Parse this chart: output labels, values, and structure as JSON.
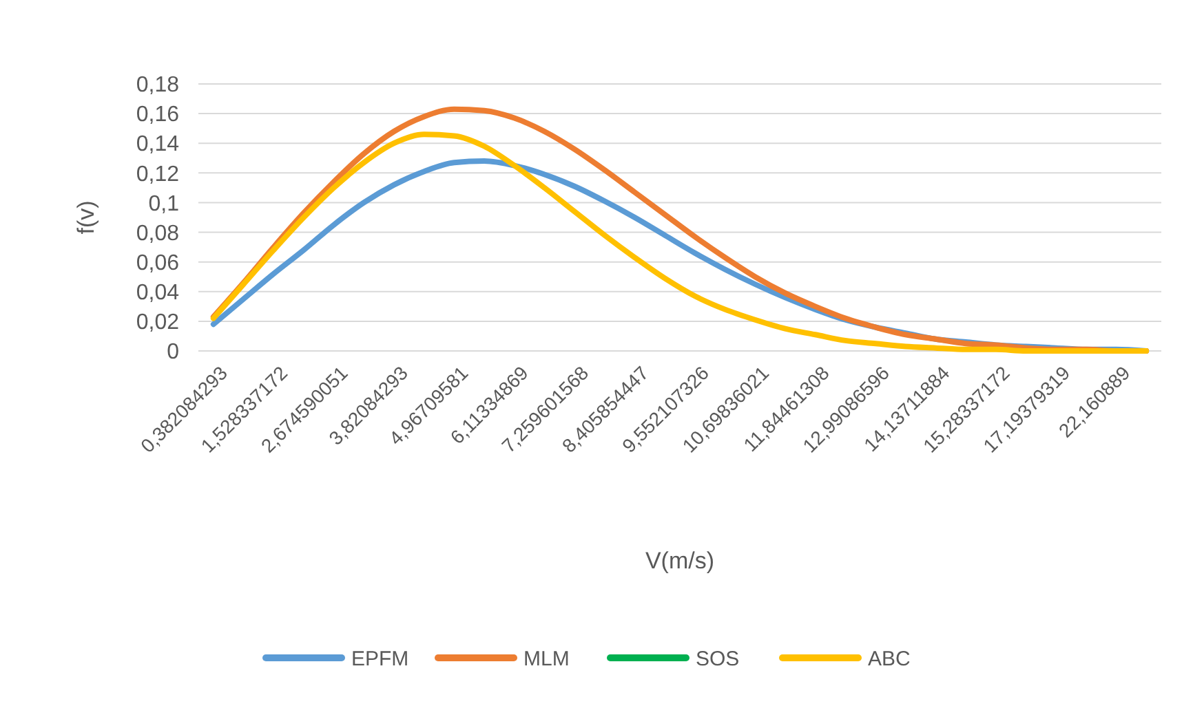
{
  "chart_data": {
    "type": "line",
    "xlabel": "V(m/s)",
    "ylabel": "f(v)",
    "categories": [
      "0,382084293",
      null,
      "1,528337172",
      null,
      "2,674590051",
      null,
      "3,82084293",
      null,
      "4,96709581",
      null,
      "6,11334869",
      null,
      "7,259601568",
      null,
      "8,405854447",
      null,
      "9,552107326",
      null,
      "10,69836021",
      null,
      "11,84461308",
      null,
      "12,99086596",
      null,
      "14,13711884",
      null,
      "15,28337172",
      null,
      "17,19379319",
      null,
      "22,160889",
      null
    ],
    "series": [
      {
        "name": "EPFM",
        "color": "#5b9bd5",
        "values": [
          0.018,
          0.035,
          0.052,
          0.068,
          0.085,
          0.1,
          0.112,
          0.121,
          0.127,
          0.128,
          0.125,
          0.119,
          0.111,
          0.101,
          0.09,
          0.078,
          0.066,
          0.055,
          0.045,
          0.036,
          0.028,
          0.021,
          0.016,
          0.012,
          0.008,
          0.006,
          0.004,
          0.003,
          0.002,
          0.001,
          0.001,
          0
        ]
      },
      {
        "name": "MLM",
        "color": "#ed7d31",
        "values": [
          0.023,
          0.046,
          0.07,
          0.093,
          0.114,
          0.133,
          0.148,
          0.158,
          0.163,
          0.162,
          0.157,
          0.148,
          0.136,
          0.122,
          0.107,
          0.092,
          0.077,
          0.063,
          0.05,
          0.039,
          0.03,
          0.022,
          0.016,
          0.011,
          0.008,
          0.005,
          0.004,
          0.002,
          0.001,
          0.001,
          0,
          0
        ]
      },
      {
        "name": "SOS",
        "color": "#00b050",
        "values": [
          null,
          null,
          null,
          null,
          null,
          null,
          null,
          null,
          null,
          null,
          null,
          null,
          null,
          null,
          null,
          null,
          null,
          null,
          null,
          null,
          null,
          null,
          null,
          null,
          null,
          null,
          null,
          null,
          null,
          null,
          null,
          null
        ]
      },
      {
        "name": "ABC",
        "color": "#ffc000",
        "values": [
          0.022,
          0.045,
          0.068,
          0.09,
          0.11,
          0.127,
          0.14,
          0.146,
          0.145,
          0.138,
          0.125,
          0.11,
          0.094,
          0.078,
          0.063,
          0.049,
          0.037,
          0.028,
          0.021,
          0.015,
          0.011,
          0.007,
          0.005,
          0.003,
          0.002,
          0.001,
          0.001,
          0,
          0,
          0,
          0,
          0
        ]
      }
    ],
    "ylim": [
      0,
      0.18
    ],
    "yticks": [
      0,
      {
        "value": 0.02,
        "label": "0,02"
      },
      {
        "value": 0.04,
        "label": "0,04"
      },
      {
        "value": 0.06,
        "label": "0,06"
      },
      {
        "value": 0.08,
        "label": "0,08"
      },
      {
        "value": 0.1,
        "label": "0,1"
      },
      {
        "value": 0.12,
        "label": "0,12"
      },
      {
        "value": 0.14,
        "label": "0,14"
      },
      {
        "value": 0.16,
        "label": "0,16"
      },
      {
        "value": 0.18,
        "label": "0,18"
      }
    ],
    "grid": "y",
    "legend": "bottom",
    "marker": "none",
    "line_style": "solid"
  }
}
